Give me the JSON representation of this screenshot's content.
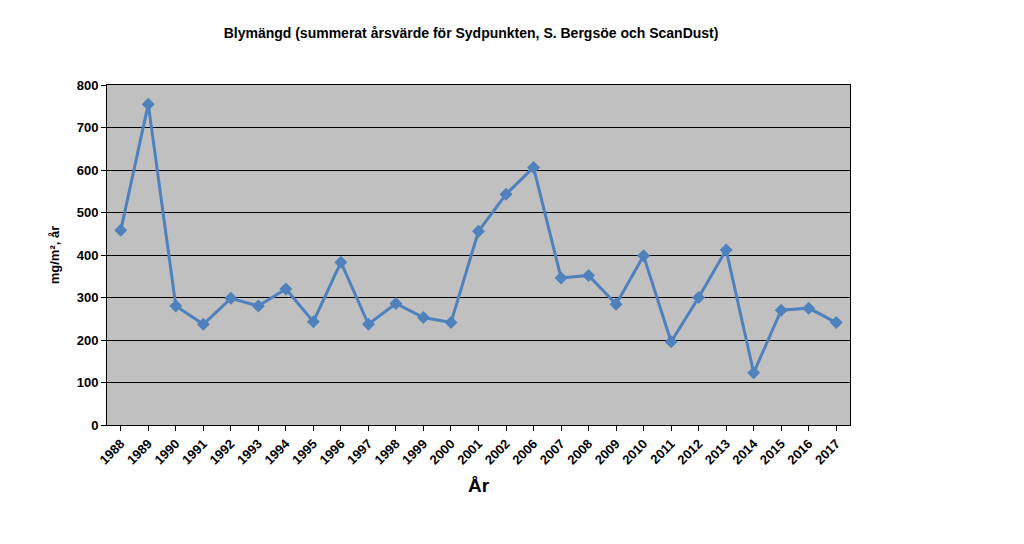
{
  "chart_data": {
    "type": "line",
    "title": "Blymängd (summerat årsvärde för Sydpunkten, S. Bergsöe och ScanDust)",
    "x_label": "År",
    "y_label": "mg/m², år",
    "categories": [
      "1988",
      "1989",
      "1990",
      "1991",
      "1992",
      "1993",
      "1994",
      "1995",
      "1996",
      "1997",
      "1998",
      "1999",
      "2000",
      "2001",
      "2002",
      "2006",
      "2007",
      "2008",
      "2009",
      "2010",
      "2011",
      "2012",
      "2013",
      "2014",
      "2015",
      "2016",
      "2017"
    ],
    "values": [
      458,
      755,
      280,
      237,
      298,
      280,
      320,
      243,
      383,
      237,
      286,
      253,
      241,
      456,
      543,
      606,
      346,
      352,
      284,
      398,
      196,
      300,
      412,
      123,
      270,
      275,
      241
    ],
    "color": "#4f81bd",
    "marker": "diamond",
    "ylim": [
      0,
      800
    ],
    "yticks": [
      0,
      100,
      200,
      300,
      400,
      500,
      600,
      700,
      800
    ],
    "grid": true
  }
}
